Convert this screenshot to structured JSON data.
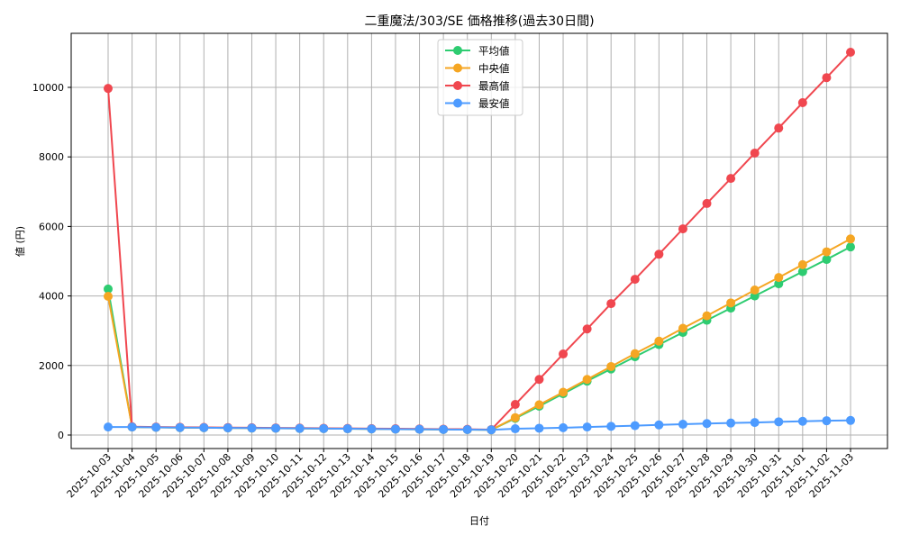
{
  "chart_data": {
    "type": "line",
    "title": "二重魔法/303/SE 価格推移(過去30日間)",
    "xlabel": "日付",
    "ylabel": "値 (円)",
    "ylim": [
      -400,
      11500
    ],
    "yticks": [
      0,
      2000,
      4000,
      6000,
      8000,
      10000
    ],
    "grid": true,
    "legend_position": "upper center",
    "x": [
      "2025-10-03",
      "2025-10-04",
      "2025-10-05",
      "2025-10-06",
      "2025-10-07",
      "2025-10-08",
      "2025-10-09",
      "2025-10-10",
      "2025-10-11",
      "2025-10-12",
      "2025-10-13",
      "2025-10-14",
      "2025-10-15",
      "2025-10-16",
      "2025-10-17",
      "2025-10-18",
      "2025-10-19",
      "2025-10-20",
      "2025-10-21",
      "2025-10-22",
      "2025-10-23",
      "2025-10-24",
      "2025-10-25",
      "2025-10-26",
      "2025-10-27",
      "2025-10-28",
      "2025-10-29",
      "2025-10-30",
      "2025-10-31",
      "2025-11-01",
      "2025-11-02",
      "2025-11-03"
    ],
    "series": [
      {
        "name": "平均値",
        "color": "#2ecc71",
        "values": [
          4200,
          230,
          220,
          215,
          210,
          205,
          200,
          195,
          190,
          185,
          180,
          175,
          170,
          165,
          160,
          155,
          150,
          480,
          830,
          1190,
          1550,
          1900,
          2250,
          2600,
          2950,
          3300,
          3650,
          4000,
          4350,
          4700,
          5050,
          5410
        ]
      },
      {
        "name": "中央値",
        "color": "#f5a623",
        "values": [
          3990,
          230,
          220,
          215,
          210,
          205,
          200,
          195,
          190,
          185,
          180,
          175,
          170,
          165,
          160,
          155,
          150,
          500,
          870,
          1230,
          1600,
          1970,
          2340,
          2700,
          3070,
          3430,
          3800,
          4170,
          4530,
          4900,
          5270,
          5640
        ]
      },
      {
        "name": "最高値",
        "color": "#f0474f",
        "values": [
          9970,
          240,
          230,
          225,
          220,
          215,
          210,
          205,
          200,
          195,
          190,
          185,
          180,
          175,
          170,
          165,
          155,
          880,
          1600,
          2330,
          3050,
          3780,
          4480,
          5200,
          5930,
          6660,
          7380,
          8110,
          8830,
          9560,
          10280,
          11010
        ]
      },
      {
        "name": "最安値",
        "color": "#4d9bff",
        "values": [
          230,
          230,
          220,
          215,
          210,
          205,
          200,
          195,
          190,
          185,
          180,
          175,
          170,
          165,
          160,
          155,
          150,
          180,
          195,
          210,
          230,
          250,
          270,
          290,
          310,
          330,
          345,
          360,
          380,
          395,
          410,
          420
        ]
      }
    ]
  }
}
